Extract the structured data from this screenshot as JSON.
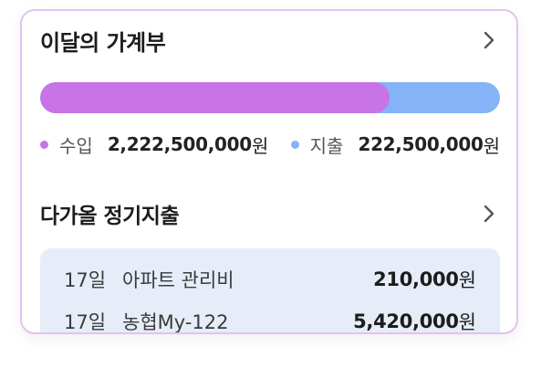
{
  "monthly_ledger": {
    "title": "이달의 가계부",
    "income_share": 0.76,
    "income": {
      "label": "수입",
      "amount": "2,222,500,000",
      "unit": "원"
    },
    "expense": {
      "label": "지출",
      "amount": "222,500,000",
      "unit": "원"
    }
  },
  "upcoming": {
    "title": "다가올 정기지출",
    "items": [
      {
        "day": "17일",
        "name": "아파트 관리비",
        "amount": "210,000",
        "unit": "원"
      },
      {
        "day": "17일",
        "name": "농협My-122",
        "amount": "5,420,000",
        "unit": "원"
      }
    ]
  },
  "colors": {
    "income": "#c874e6",
    "expense": "#84b3f8",
    "card_border": "#e2c3ee",
    "list_background": "#e7edf8"
  },
  "icons": {
    "ledger_more": "chevron-right-icon",
    "upcoming_more": "chevron-right-icon"
  }
}
